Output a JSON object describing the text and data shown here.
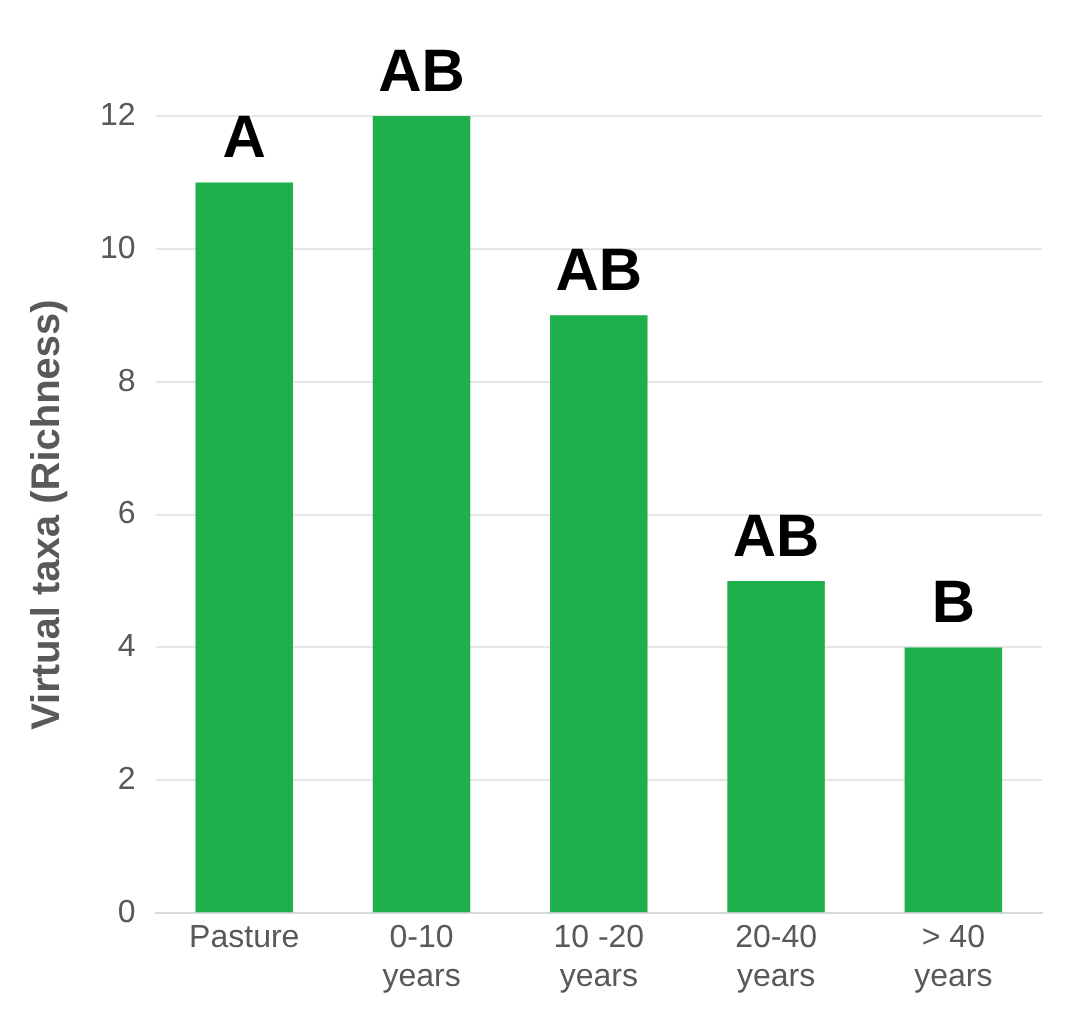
{
  "chart_data": {
    "type": "bar",
    "ylabel": "Virtual taxa (Richness)",
    "categories": [
      "Pasture",
      "0-10 years",
      "10 -20 years",
      "20-40 years",
      "> 40 years"
    ],
    "values": [
      11,
      12,
      9,
      5,
      4
    ],
    "color": "#1db04b",
    "ylim": [
      0,
      12
    ],
    "yticks": [
      0,
      2,
      4,
      6,
      8,
      10,
      12
    ],
    "grid": "y",
    "annotations": [
      {
        "text": "A",
        "x": "Pasture",
        "y": 11
      },
      {
        "text": "AB",
        "x": "0-10 years",
        "y": 12
      },
      {
        "text": "AB",
        "x": "10 -20 years",
        "y": 9
      },
      {
        "text": "AB",
        "x": "20-40 years",
        "y": 5
      },
      {
        "text": "B",
        "x": "> 40 years",
        "y": 4
      }
    ]
  }
}
